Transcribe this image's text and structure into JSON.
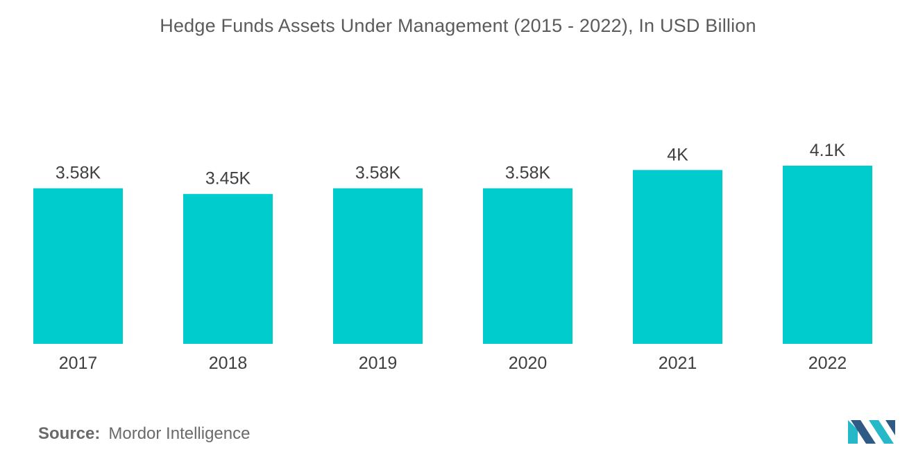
{
  "chart_data": {
    "type": "bar",
    "title": "Hedge Funds Assets Under Management (2015 - 2022), In USD Billion",
    "categories": [
      "2017",
      "2018",
      "2019",
      "2020",
      "2021",
      "2022"
    ],
    "values": [
      3580,
      3450,
      3580,
      3580,
      4000,
      4100
    ],
    "data_labels": [
      "3.58K",
      "3.45K",
      "3.58K",
      "3.58K",
      "4K",
      "4.1K"
    ],
    "xlabel": "",
    "ylabel": "",
    "ylim": [
      0,
      4100
    ],
    "grid": false,
    "legend": "none",
    "colors": {
      "bar": "#00cccd",
      "logo_dark": "#2f5a86",
      "logo_light": "#24b8c9"
    }
  },
  "source": {
    "label": "Source:",
    "text": "Mordor Intelligence"
  }
}
